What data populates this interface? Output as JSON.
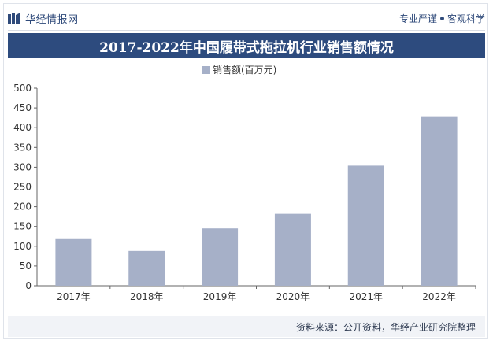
{
  "header": {
    "brand": "华经情报网",
    "tagline_left": "专业严谨",
    "tagline_right": "客观科学"
  },
  "title": "2017-2022年中国履带式拖拉机行业销售额情况",
  "source": "资料来源：公开资料，华经产业研究院整理",
  "colors": {
    "title_bg": "#2d4b7e",
    "bar": "#a6b0c8",
    "axis": "#666666"
  },
  "chart_data": {
    "type": "bar",
    "categories": [
      "2017年",
      "2018年",
      "2019年",
      "2020年",
      "2021年",
      "2022年"
    ],
    "series": [
      {
        "name": "销售额(百万元)",
        "values": [
          120,
          88,
          145,
          182,
          304,
          429
        ]
      }
    ],
    "ylim": [
      0,
      500
    ],
    "yticks": [
      0,
      50,
      100,
      150,
      200,
      250,
      300,
      350,
      400,
      450,
      500
    ],
    "legend": "top-center",
    "grid": false
  }
}
